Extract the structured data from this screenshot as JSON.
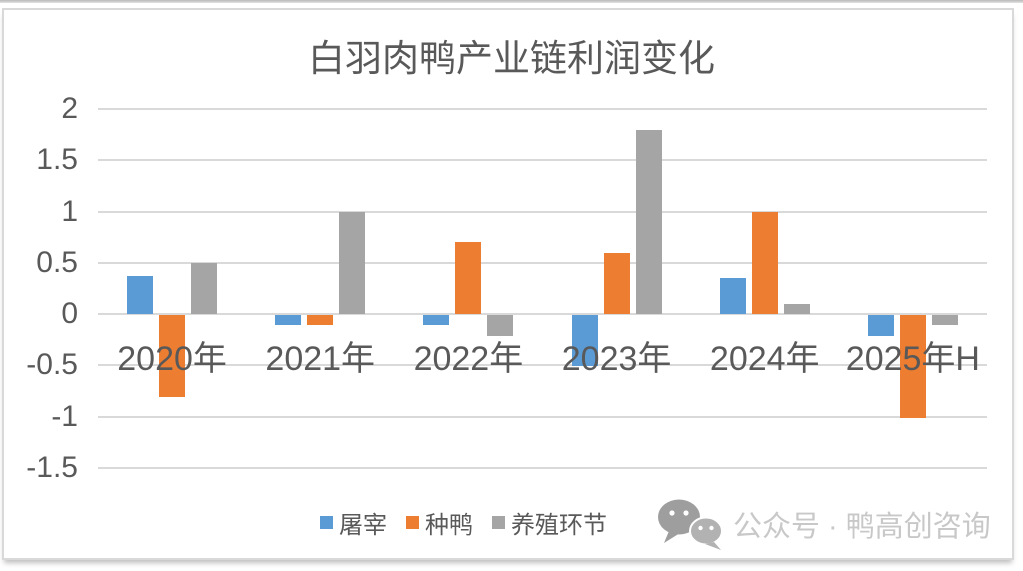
{
  "title": "白羽肉鸭产业链利润变化",
  "watermark": {
    "icon": "wechat-icon",
    "text": "公众号 · 鸭高创咨询",
    "color": "#c8c8c8"
  },
  "colors": {
    "series_slaughter": "#5B9BD5",
    "series_breeder_duck": "#ED7D31",
    "series_farming": "#A5A5A5",
    "axis_text": "#595959",
    "gridline": "#D9D9D9",
    "frame_border": "#D8D8D8"
  },
  "chart_data": {
    "type": "bar",
    "title": "白羽肉鸭产业链利润变化",
    "categories": [
      "2020年",
      "2021年",
      "2022年",
      "2023年",
      "2024年",
      "2025年H"
    ],
    "series": [
      {
        "name": "屠宰",
        "color": "#5B9BD5",
        "values": [
          0.37,
          -0.1,
          -0.1,
          -0.5,
          0.35,
          -0.2
        ]
      },
      {
        "name": "种鸭",
        "color": "#ED7D31",
        "values": [
          -0.8,
          -0.1,
          0.7,
          0.6,
          1.0,
          -1.0
        ]
      },
      {
        "name": "养殖环节",
        "color": "#A5A5A5",
        "values": [
          0.5,
          1.0,
          -0.2,
          1.8,
          0.1,
          -0.1
        ]
      }
    ],
    "y_ticks": [
      2,
      1.5,
      1,
      0.5,
      0,
      -0.5,
      -1,
      -1.5
    ],
    "ylim": [
      -1.5,
      2
    ],
    "xlabel": "",
    "ylabel": "",
    "grid": true,
    "legend_position": "bottom-left"
  }
}
